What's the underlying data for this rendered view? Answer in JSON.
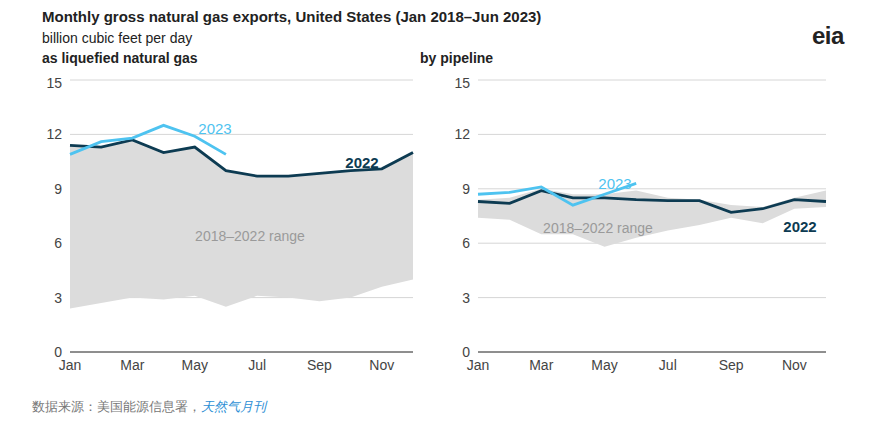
{
  "title": "Monthly gross natural gas exports, United States (Jan 2018–Jun 2023)",
  "subtitle": "billion cubic feet per day",
  "logo": "eia",
  "source": "数据来源：美国能源信息署，",
  "source_publication": "天然气月刊",
  "chart_data": [
    {
      "type": "line",
      "title": "as liquefied natural gas",
      "categories": [
        "Jan",
        null,
        "Mar",
        null,
        "May",
        null,
        "Jul",
        null,
        "Sep",
        null,
        "Nov",
        null
      ],
      "ylim": [
        0,
        15
      ],
      "yticks": [
        0,
        3,
        6,
        9,
        12,
        15
      ],
      "grid": true,
      "series": [
        {
          "name": "2018–2022 range",
          "type": "area",
          "color": "#dcdcdc",
          "low": [
            2.4,
            2.7,
            3.0,
            2.9,
            3.1,
            2.5,
            3.1,
            3.0,
            2.8,
            3.0,
            3.6,
            4.0
          ],
          "high": [
            11.4,
            11.3,
            11.7,
            11.0,
            11.3,
            10.0,
            9.7,
            9.7,
            9.85,
            10.0,
            10.1,
            11.0
          ]
        },
        {
          "name": "2022",
          "type": "line",
          "color": "#0d3b52",
          "values": [
            11.4,
            11.3,
            11.7,
            11.0,
            11.3,
            10.0,
            9.7,
            9.7,
            9.85,
            10.0,
            10.1,
            11.0
          ]
        },
        {
          "name": "2023",
          "type": "line",
          "color": "#4ec3f0",
          "values": [
            10.9,
            11.6,
            11.8,
            12.5,
            11.9,
            10.9,
            null,
            null,
            null,
            null,
            null,
            null
          ]
        }
      ]
    },
    {
      "type": "line",
      "title": "by pipeline",
      "categories": [
        "Jan",
        null,
        "Mar",
        null,
        "May",
        null,
        "Jul",
        null,
        "Sep",
        null,
        "Nov",
        null
      ],
      "ylim": [
        0,
        15
      ],
      "yticks": [
        0,
        3,
        6,
        9,
        12,
        15
      ],
      "grid": true,
      "series": [
        {
          "name": "2018–2022 range",
          "type": "area",
          "color": "#dcdcdc",
          "low": [
            7.4,
            7.3,
            6.5,
            6.5,
            5.8,
            6.3,
            6.7,
            7.0,
            7.4,
            7.1,
            7.9,
            8.0
          ],
          "high": [
            8.4,
            8.5,
            9.0,
            8.7,
            8.7,
            8.9,
            8.5,
            8.4,
            8.1,
            8.0,
            8.5,
            8.9
          ]
        },
        {
          "name": "2022",
          "type": "line",
          "color": "#0d3b52",
          "values": [
            8.3,
            8.2,
            8.9,
            8.5,
            8.5,
            8.4,
            8.35,
            8.35,
            7.7,
            7.9,
            8.4,
            8.3
          ]
        },
        {
          "name": "2023",
          "type": "line",
          "color": "#4ec3f0",
          "values": [
            8.7,
            8.8,
            9.1,
            8.1,
            8.7,
            9.3,
            null,
            null,
            null,
            null,
            null,
            null
          ]
        }
      ]
    }
  ]
}
